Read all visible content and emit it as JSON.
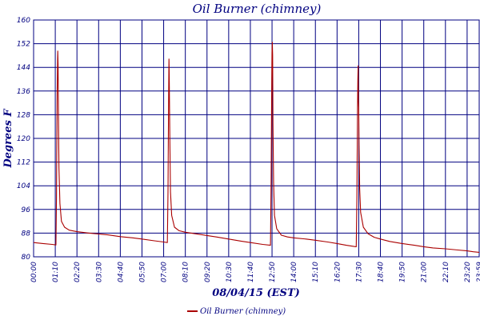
{
  "chart_data": {
    "type": "line",
    "title": "Oil Burner (chimney)",
    "xlabel": "08/04/15 (EST)",
    "ylabel": "Degrees F",
    "x_unit": "hh:mm",
    "y_ticks": [
      "80",
      "88",
      "96",
      "104",
      "112",
      "120",
      "128",
      "136",
      "144",
      "152",
      "160"
    ],
    "x_ticks": [
      "00:00",
      "01:10",
      "02:20",
      "03:30",
      "04:40",
      "05:50",
      "07:00",
      "08:10",
      "09:20",
      "10:30",
      "11:40",
      "12:50",
      "14:00",
      "15:10",
      "16:20",
      "17:30",
      "18:40",
      "19:50",
      "21:00",
      "22:10",
      "23:20",
      "23:59"
    ],
    "ylim": [
      80,
      160
    ],
    "xlim": [
      "00:00",
      "23:59"
    ],
    "grid": true,
    "colors": {
      "series": "#aa0000",
      "grid": "#000080",
      "text": "#000080"
    },
    "legend": {
      "placement": "bottom-center"
    },
    "series": [
      {
        "name": "Oil Burner (chimney)",
        "points": [
          [
            "00:00",
            84.8
          ],
          [
            "00:30",
            84.5
          ],
          [
            "01:00",
            84.2
          ],
          [
            "01:12",
            84.0
          ],
          [
            "01:14",
            100
          ],
          [
            "01:16",
            135
          ],
          [
            "01:17",
            143
          ],
          [
            "01:18",
            149.5
          ],
          [
            "01:19",
            145
          ],
          [
            "01:20",
            130
          ],
          [
            "01:22",
            110
          ],
          [
            "01:25",
            98
          ],
          [
            "01:30",
            92
          ],
          [
            "01:40",
            90
          ],
          [
            "01:55",
            89
          ],
          [
            "02:20",
            88.5
          ],
          [
            "03:00",
            88
          ],
          [
            "03:30",
            87.7
          ],
          [
            "04:00",
            87.4
          ],
          [
            "04:40",
            86.8
          ],
          [
            "05:20",
            86.4
          ],
          [
            "05:50",
            86
          ],
          [
            "06:30",
            85.4
          ],
          [
            "07:00",
            85
          ],
          [
            "07:12",
            84.8
          ],
          [
            "07:14",
            102
          ],
          [
            "07:16",
            135
          ],
          [
            "07:17",
            146.8
          ],
          [
            "07:18",
            142
          ],
          [
            "07:20",
            120
          ],
          [
            "07:22",
            102
          ],
          [
            "07:26",
            94
          ],
          [
            "07:35",
            90
          ],
          [
            "07:50",
            88.8
          ],
          [
            "08:10",
            88.3
          ],
          [
            "08:40",
            87.8
          ],
          [
            "09:20",
            87.2
          ],
          [
            "09:50",
            86.7
          ],
          [
            "10:30",
            86
          ],
          [
            "11:10",
            85.3
          ],
          [
            "11:40",
            84.8
          ],
          [
            "12:20",
            84.2
          ],
          [
            "12:45",
            83.9
          ],
          [
            "12:47",
            105
          ],
          [
            "12:49",
            140
          ],
          [
            "12:50",
            149
          ],
          [
            "12:51",
            152.5
          ],
          [
            "12:52",
            148
          ],
          [
            "12:53",
            125
          ],
          [
            "12:55",
            105
          ],
          [
            "12:58",
            94
          ],
          [
            "13:05",
            89.5
          ],
          [
            "13:20",
            87.3
          ],
          [
            "13:40",
            86.7
          ],
          [
            "14:00",
            86.4
          ],
          [
            "14:40",
            86
          ],
          [
            "15:10",
            85.6
          ],
          [
            "15:50",
            85
          ],
          [
            "16:20",
            84.5
          ],
          [
            "16:50",
            83.9
          ],
          [
            "17:15",
            83.5
          ],
          [
            "17:22",
            83.4
          ],
          [
            "17:24",
            100
          ],
          [
            "17:26",
            130
          ],
          [
            "17:27",
            140
          ],
          [
            "17:28",
            144.5
          ],
          [
            "17:29",
            133
          ],
          [
            "17:30",
            130.5
          ],
          [
            "17:31",
            118
          ],
          [
            "17:33",
            103
          ],
          [
            "17:36",
            95
          ],
          [
            "17:45",
            90
          ],
          [
            "18:00",
            87.8
          ],
          [
            "18:20",
            86.6
          ],
          [
            "18:40",
            86
          ],
          [
            "19:10",
            85.2
          ],
          [
            "19:50",
            84.5
          ],
          [
            "20:30",
            83.9
          ],
          [
            "21:00",
            83.4
          ],
          [
            "21:30",
            83
          ],
          [
            "22:10",
            82.7
          ],
          [
            "22:50",
            82.3
          ],
          [
            "23:20",
            82
          ],
          [
            "23:40",
            81.7
          ],
          [
            "23:59",
            81.5
          ]
        ]
      }
    ]
  }
}
